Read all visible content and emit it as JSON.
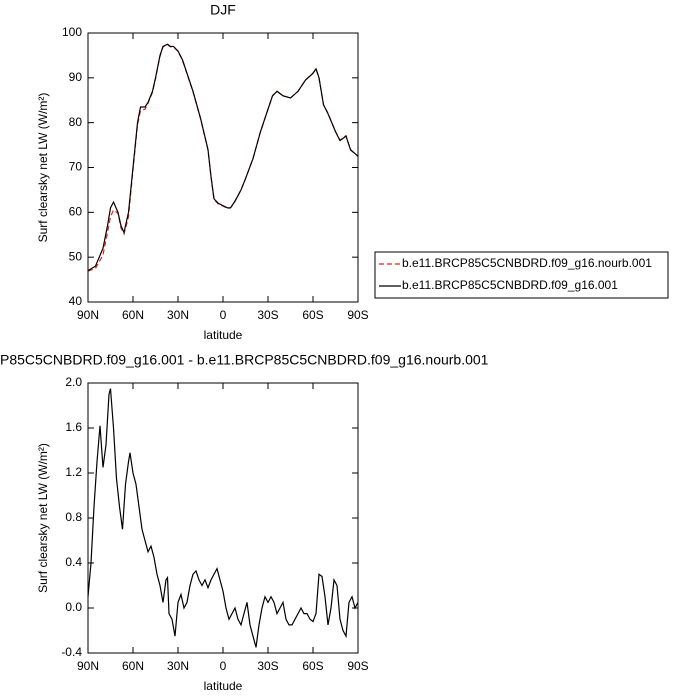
{
  "chart_data": [
    {
      "type": "line",
      "title": "DJF",
      "xlabel": "latitude",
      "ylabel": "Surf clearsky net LW (W/m²)",
      "x": [
        90,
        85,
        80,
        77,
        75,
        73,
        70,
        68,
        66,
        63,
        60,
        57,
        55,
        52,
        50,
        47,
        45,
        42,
        40,
        37,
        35,
        33,
        30,
        27,
        25,
        20,
        15,
        10,
        8,
        6,
        3,
        0,
        -3,
        -5,
        -8,
        -12,
        -15,
        -20,
        -25,
        -30,
        -33,
        -36,
        -40,
        -45,
        -50,
        -55,
        -60,
        -62,
        -64,
        -67,
        -70,
        -75,
        -78,
        -82,
        -85,
        -90
      ],
      "series": [
        {
          "name": "b.e11.BRCP85C5CNBDRD.f09_g16.nourb.001",
          "color": "#e0201b",
          "style": "dashed",
          "values": [
            46.9,
            47.5,
            50.5,
            55.5,
            59,
            60.5,
            59.8,
            56.5,
            55.2,
            59,
            69.5,
            79.5,
            82.7,
            83,
            84.3,
            86.8,
            89.8,
            94.8,
            96.9,
            97.4,
            96.9,
            96.9,
            95.9,
            93.9,
            91.9,
            86.9,
            80.9,
            73.9,
            67.9,
            62.9,
            61.8,
            61.4,
            60.9,
            61,
            62.5,
            65,
            67.5,
            72,
            78,
            83,
            86,
            87,
            86,
            85.5,
            87,
            89.5,
            91.1,
            92,
            90,
            84,
            82.1,
            78,
            76.1,
            77.1,
            73.9,
            72.5
          ]
        },
        {
          "name": "b.e11.BRCP85C5CNBDRD.f09_g16.001",
          "color": "#000000",
          "style": "solid",
          "values": [
            47,
            48,
            52,
            57,
            61,
            62.3,
            60,
            57,
            55.5,
            60,
            70,
            80,
            83.5,
            83.5,
            84.5,
            87,
            90,
            95,
            97,
            97.5,
            97,
            97,
            96,
            94,
            92,
            87,
            81,
            74,
            68,
            63,
            62,
            61.5,
            61,
            61,
            62.5,
            65,
            67.5,
            72,
            78,
            83,
            86,
            87,
            86,
            85.5,
            87,
            89.5,
            91,
            92,
            90,
            84,
            82,
            78,
            76,
            77,
            74,
            72.5
          ]
        }
      ],
      "xlim": [
        90,
        -90
      ],
      "xticks": [
        {
          "value": 90,
          "label": "90N"
        },
        {
          "value": 60,
          "label": "60N"
        },
        {
          "value": 30,
          "label": "30N"
        },
        0,
        {
          "value": -30,
          "label": "30S"
        },
        {
          "value": -60,
          "label": "60S"
        },
        {
          "value": -90,
          "label": "90S"
        }
      ],
      "ylim": [
        40,
        100
      ],
      "yticks": [
        40,
        50,
        60,
        70,
        80,
        90,
        100
      ],
      "legend": "right"
    },
    {
      "type": "line",
      "title": "P85C5CNBDRD.f09_g16.001 - b.e11.BRCP85C5CNBDRD.f09_g16.nourb.001",
      "xlabel": "latitude",
      "ylabel": "Surf clearsky net LW (W/m²)",
      "x": [
        90,
        88,
        86,
        84,
        82,
        80,
        78,
        76,
        75,
        73,
        71,
        69,
        67,
        65,
        63,
        62,
        60,
        58,
        56,
        54,
        52,
        50,
        48,
        46,
        44,
        42,
        40,
        38,
        37,
        36,
        34,
        32,
        30,
        28,
        26,
        24,
        22,
        20,
        18,
        16,
        14,
        12,
        10,
        8,
        6,
        4,
        2,
        0,
        -2,
        -4,
        -6,
        -8,
        -10,
        -12,
        -14,
        -16,
        -18,
        -20,
        -22,
        -24,
        -26,
        -28,
        -30,
        -32,
        -34,
        -36,
        -38,
        -40,
        -42,
        -44,
        -46,
        -48,
        -50,
        -52,
        -54,
        -56,
        -58,
        -60,
        -62,
        -64,
        -66,
        -68,
        -70,
        -72,
        -74,
        -76,
        -78,
        -80,
        -82,
        -84,
        -86,
        -88,
        -90
      ],
      "series": [
        {
          "color": "#000000",
          "style": "solid",
          "values": [
            0.1,
            0.4,
            0.9,
            1.3,
            1.62,
            1.25,
            1.45,
            1.9,
            1.95,
            1.6,
            1.15,
            0.9,
            0.7,
            1.1,
            1.3,
            1.38,
            1.2,
            1.1,
            0.9,
            0.7,
            0.6,
            0.5,
            0.55,
            0.45,
            0.3,
            0.2,
            0.05,
            0.25,
            0.27,
            -0.05,
            -0.1,
            -0.25,
            0.05,
            0.12,
            0,
            0.05,
            0.2,
            0.3,
            0.33,
            0.25,
            0.2,
            0.25,
            0.18,
            0.25,
            0.3,
            0.35,
            0.25,
            0.15,
            0,
            -0.1,
            -0.05,
            0,
            -0.1,
            -0.15,
            -0.05,
            0.05,
            -0.15,
            -0.25,
            -0.35,
            -0.15,
            0,
            0.1,
            0.05,
            0.1,
            0.05,
            -0.05,
            0,
            0.05,
            -0.1,
            -0.15,
            -0.15,
            -0.1,
            -0.05,
            0,
            -0.05,
            -0.05,
            -0.1,
            -0.12,
            -0.05,
            0.3,
            0.28,
            0.1,
            -0.15,
            0,
            0.25,
            0.2,
            -0.1,
            -0.2,
            -0.25,
            0.05,
            0.1,
            0,
            0.05
          ]
        }
      ],
      "xlim": [
        90,
        -90
      ],
      "xticks": [
        {
          "value": 90,
          "label": "90N"
        },
        {
          "value": 60,
          "label": "60N"
        },
        {
          "value": 30,
          "label": "30N"
        },
        0,
        {
          "value": -30,
          "label": "30S"
        },
        {
          "value": -60,
          "label": "60S"
        },
        {
          "value": -90,
          "label": "90S"
        }
      ],
      "ylim": [
        -0.4,
        2.0
      ],
      "yticks": [
        -0.4,
        {
          "value": 0,
          "label": "0.0"
        },
        0.4,
        0.8,
        1.2,
        1.6,
        {
          "value": 2,
          "label": "2.0"
        }
      ]
    }
  ]
}
